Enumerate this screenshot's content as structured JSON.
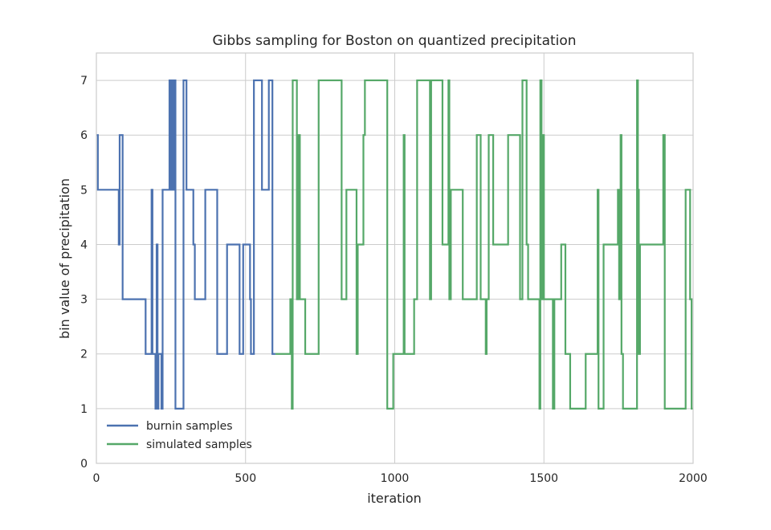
{
  "chart_data": {
    "type": "line",
    "title": "Gibbs sampling for Boston on quantized precipitation",
    "xlabel": "iteration",
    "ylabel": "bin value of precipitation",
    "xlim": [
      0,
      2000
    ],
    "ylim": [
      0,
      7.5
    ],
    "xticks": [
      0,
      500,
      1000,
      1500,
      2000
    ],
    "yticks": [
      0,
      1,
      2,
      3,
      4,
      5,
      6,
      7
    ],
    "grid": true,
    "legend_position": "bottom-left",
    "series": [
      {
        "name": "burnin samples",
        "color": "#4c72b0",
        "points": [
          [
            0,
            6
          ],
          [
            5,
            6
          ],
          [
            5,
            5
          ],
          [
            75,
            5
          ],
          [
            75,
            4
          ],
          [
            78,
            4
          ],
          [
            78,
            6
          ],
          [
            88,
            6
          ],
          [
            88,
            3
          ],
          [
            165,
            3
          ],
          [
            165,
            2
          ],
          [
            185,
            2
          ],
          [
            185,
            5
          ],
          [
            188,
            5
          ],
          [
            188,
            2
          ],
          [
            198,
            2
          ],
          [
            198,
            1
          ],
          [
            202,
            1
          ],
          [
            202,
            4
          ],
          [
            205,
            4
          ],
          [
            205,
            1
          ],
          [
            208,
            1
          ],
          [
            208,
            2
          ],
          [
            218,
            2
          ],
          [
            218,
            1
          ],
          [
            222,
            1
          ],
          [
            222,
            5
          ],
          [
            245,
            5
          ],
          [
            245,
            7
          ],
          [
            250,
            7
          ],
          [
            250,
            5
          ],
          [
            253,
            5
          ],
          [
            253,
            7
          ],
          [
            258,
            7
          ],
          [
            258,
            5
          ],
          [
            262,
            5
          ],
          [
            262,
            7
          ],
          [
            265,
            7
          ],
          [
            265,
            1
          ],
          [
            292,
            1
          ],
          [
            292,
            7
          ],
          [
            302,
            7
          ],
          [
            302,
            5
          ],
          [
            325,
            5
          ],
          [
            325,
            4
          ],
          [
            330,
            4
          ],
          [
            330,
            3
          ],
          [
            365,
            3
          ],
          [
            365,
            5
          ],
          [
            405,
            5
          ],
          [
            405,
            2
          ],
          [
            438,
            2
          ],
          [
            438,
            4
          ],
          [
            480,
            4
          ],
          [
            480,
            2
          ],
          [
            492,
            2
          ],
          [
            492,
            4
          ],
          [
            515,
            4
          ],
          [
            515,
            3
          ],
          [
            518,
            3
          ],
          [
            518,
            2
          ],
          [
            528,
            2
          ],
          [
            528,
            7
          ],
          [
            555,
            7
          ],
          [
            555,
            5
          ],
          [
            578,
            5
          ],
          [
            578,
            7
          ],
          [
            590,
            7
          ],
          [
            590,
            2
          ],
          [
            600,
            2
          ]
        ]
      },
      {
        "name": "simulated samples",
        "color": "#55a868",
        "points": [
          [
            600,
            2
          ],
          [
            650,
            2
          ],
          [
            650,
            3
          ],
          [
            655,
            3
          ],
          [
            655,
            1
          ],
          [
            658,
            1
          ],
          [
            658,
            7
          ],
          [
            672,
            7
          ],
          [
            672,
            3
          ],
          [
            678,
            3
          ],
          [
            678,
            6
          ],
          [
            682,
            6
          ],
          [
            682,
            3
          ],
          [
            700,
            3
          ],
          [
            700,
            2
          ],
          [
            745,
            2
          ],
          [
            745,
            7
          ],
          [
            822,
            7
          ],
          [
            822,
            3
          ],
          [
            838,
            3
          ],
          [
            838,
            5
          ],
          [
            872,
            5
          ],
          [
            872,
            2
          ],
          [
            876,
            2
          ],
          [
            876,
            4
          ],
          [
            895,
            4
          ],
          [
            895,
            6
          ],
          [
            900,
            6
          ],
          [
            900,
            7
          ],
          [
            975,
            7
          ],
          [
            975,
            1
          ],
          [
            995,
            1
          ],
          [
            995,
            2
          ],
          [
            1030,
            2
          ],
          [
            1030,
            6
          ],
          [
            1033,
            6
          ],
          [
            1033,
            2
          ],
          [
            1065,
            2
          ],
          [
            1065,
            3
          ],
          [
            1075,
            3
          ],
          [
            1075,
            7
          ],
          [
            1118,
            7
          ],
          [
            1118,
            3
          ],
          [
            1122,
            3
          ],
          [
            1122,
            7
          ],
          [
            1160,
            7
          ],
          [
            1160,
            4
          ],
          [
            1180,
            4
          ],
          [
            1180,
            7
          ],
          [
            1183,
            7
          ],
          [
            1183,
            3
          ],
          [
            1188,
            3
          ],
          [
            1188,
            5
          ],
          [
            1228,
            5
          ],
          [
            1228,
            3
          ],
          [
            1275,
            3
          ],
          [
            1275,
            6
          ],
          [
            1288,
            6
          ],
          [
            1288,
            3
          ],
          [
            1305,
            3
          ],
          [
            1305,
            2
          ],
          [
            1308,
            2
          ],
          [
            1308,
            3
          ],
          [
            1315,
            3
          ],
          [
            1315,
            6
          ],
          [
            1330,
            6
          ],
          [
            1330,
            4
          ],
          [
            1380,
            4
          ],
          [
            1380,
            6
          ],
          [
            1420,
            6
          ],
          [
            1420,
            3
          ],
          [
            1428,
            3
          ],
          [
            1428,
            7
          ],
          [
            1442,
            7
          ],
          [
            1442,
            4
          ],
          [
            1447,
            4
          ],
          [
            1447,
            3
          ],
          [
            1485,
            3
          ],
          [
            1485,
            1
          ],
          [
            1488,
            1
          ],
          [
            1488,
            7
          ],
          [
            1492,
            7
          ],
          [
            1492,
            3
          ],
          [
            1495,
            3
          ],
          [
            1495,
            6
          ],
          [
            1500,
            6
          ],
          [
            1500,
            3
          ],
          [
            1530,
            3
          ],
          [
            1530,
            1
          ],
          [
            1535,
            1
          ],
          [
            1535,
            3
          ],
          [
            1558,
            3
          ],
          [
            1558,
            4
          ],
          [
            1572,
            4
          ],
          [
            1572,
            2
          ],
          [
            1588,
            2
          ],
          [
            1588,
            1
          ],
          [
            1640,
            1
          ],
          [
            1640,
            2
          ],
          [
            1680,
            2
          ],
          [
            1680,
            5
          ],
          [
            1683,
            5
          ],
          [
            1683,
            1
          ],
          [
            1700,
            1
          ],
          [
            1700,
            4
          ],
          [
            1748,
            4
          ],
          [
            1748,
            5
          ],
          [
            1752,
            5
          ],
          [
            1752,
            3
          ],
          [
            1757,
            3
          ],
          [
            1757,
            6
          ],
          [
            1760,
            6
          ],
          [
            1760,
            2
          ],
          [
            1765,
            2
          ],
          [
            1765,
            1
          ],
          [
            1812,
            1
          ],
          [
            1812,
            7
          ],
          [
            1815,
            7
          ],
          [
            1815,
            5
          ],
          [
            1818,
            5
          ],
          [
            1818,
            2
          ],
          [
            1822,
            2
          ],
          [
            1822,
            4
          ],
          [
            1900,
            4
          ],
          [
            1900,
            6
          ],
          [
            1905,
            6
          ],
          [
            1905,
            1
          ],
          [
            1975,
            1
          ],
          [
            1975,
            5
          ],
          [
            1990,
            5
          ],
          [
            1990,
            3
          ],
          [
            1995,
            3
          ],
          [
            1995,
            1
          ],
          [
            2000,
            1
          ]
        ]
      }
    ]
  }
}
